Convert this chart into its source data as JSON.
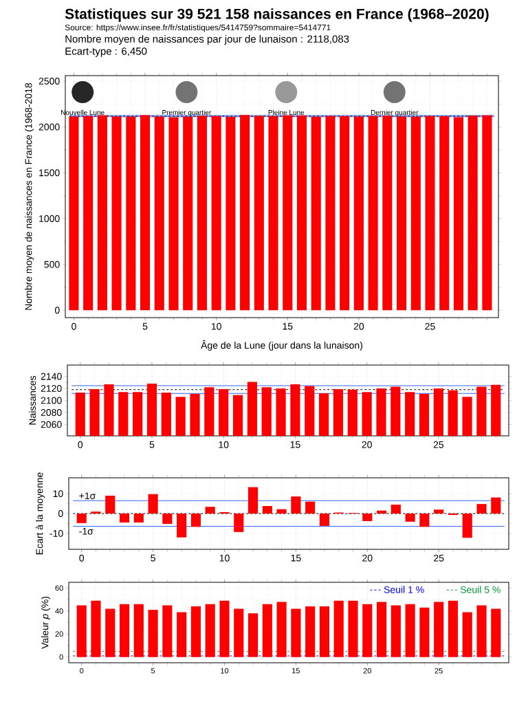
{
  "chart_data": [
    {
      "type": "bar",
      "title": "Statistiques sur 39 521 158 naissances en France (1968–2020)",
      "xlabel": "Âge de la Lune (jour dans la lunaison)",
      "ylabel": "Nombre moyen de naissances en France (1968-2018",
      "annotations": [
        "Source: https://www.insee.fr/fr/statistiques/5414759?sommaire=5414771",
        "Nombre moyen de naissances par jour de lunaison : 2118,083",
        "Ecart-type : 6,450",
        "Nouvelle Lune",
        "Premier quartier",
        "Pleine Lune",
        "Dernier quartier"
      ],
      "x": [
        0,
        1,
        2,
        3,
        4,
        5,
        6,
        7,
        8,
        9,
        10,
        11,
        12,
        13,
        14,
        15,
        16,
        17,
        18,
        19,
        20,
        21,
        22,
        23,
        24,
        25,
        26,
        27,
        28,
        29
      ],
      "values": [
        2113,
        2119,
        2127,
        2114,
        2114,
        2128,
        2113,
        2106,
        2111,
        2122,
        2119,
        2109,
        2131,
        2122,
        2120,
        2127,
        2124,
        2112,
        2119,
        2118,
        2114,
        2120,
        2123,
        2114,
        2111,
        2120,
        2117,
        2106,
        2123,
        2126
      ],
      "color": "#ff0000",
      "xlim": [
        -0.6,
        29.8
      ],
      "ylim": [
        -80,
        2560
      ],
      "xticks": [
        0,
        5,
        10,
        15,
        20,
        25
      ],
      "yticks": [
        0,
        500,
        1000,
        1500,
        2000,
        2500
      ],
      "grid": true,
      "ref_lines": [
        {
          "axis": "y",
          "value": 2111.6,
          "color": "#3366ff"
        },
        {
          "axis": "y",
          "value": 2124.5,
          "color": "#3366ff"
        },
        {
          "axis": "y",
          "value": 2118.1,
          "color": "#000000",
          "line_style": "dashed"
        }
      ]
    },
    {
      "type": "bar",
      "ylabel": "Naissances",
      "x": [
        0,
        1,
        2,
        3,
        4,
        5,
        6,
        7,
        8,
        9,
        10,
        11,
        12,
        13,
        14,
        15,
        16,
        17,
        18,
        19,
        20,
        21,
        22,
        23,
        24,
        25,
        26,
        27,
        28,
        29
      ],
      "values": [
        2113,
        2119,
        2127,
        2114,
        2114,
        2128,
        2113,
        2106,
        2111,
        2122,
        2119,
        2109,
        2131,
        2122,
        2120,
        2127,
        2124,
        2112,
        2119,
        2118,
        2114,
        2120,
        2123,
        2114,
        2111,
        2120,
        2117,
        2106,
        2123,
        2126
      ],
      "color": "#ff0000",
      "xlim": [
        -0.9,
        29.9
      ],
      "ylim": [
        2041,
        2159
      ],
      "xticks": [
        0,
        5,
        10,
        15,
        20,
        25
      ],
      "yticks": [
        2060,
        2080,
        2100,
        2120,
        2140
      ],
      "grid": true,
      "ref_lines": [
        {
          "axis": "y",
          "value": 2111.6,
          "color": "#3366ff"
        },
        {
          "axis": "y",
          "value": 2124.5,
          "color": "#3366ff"
        },
        {
          "axis": "y",
          "value": 2118.1,
          "color": "#000000",
          "line_style": "dashed"
        }
      ]
    },
    {
      "type": "bar",
      "ylabel": "Ecart à la moyenne",
      "x": [
        0,
        1,
        2,
        3,
        4,
        5,
        6,
        7,
        8,
        9,
        10,
        11,
        12,
        13,
        14,
        15,
        16,
        17,
        18,
        19,
        20,
        21,
        22,
        23,
        24,
        25,
        26,
        27,
        28,
        29
      ],
      "values": [
        -4.8,
        1,
        9,
        -4.5,
        -4.5,
        9.8,
        -5.2,
        -12,
        -6.7,
        3.4,
        0.7,
        -9.3,
        13.3,
        3.8,
        2.2,
        8.6,
        6,
        -6.2,
        0.5,
        0.3,
        -3.8,
        1.5,
        4.5,
        -4.1,
        -6.7,
        2,
        -0.7,
        -12.2,
        4.8,
        8.1
      ],
      "color": "#ff0000",
      "xlim": [
        -0.9,
        29.9
      ],
      "ylim": [
        -18,
        18
      ],
      "xticks": [
        0,
        5,
        10,
        15,
        20,
        25
      ],
      "yticks": [
        -10,
        0,
        10
      ],
      "grid": true,
      "ref_lines": [
        {
          "axis": "y",
          "value": 6.45,
          "label": "+1σ",
          "color": "#3366ff"
        },
        {
          "axis": "y",
          "value": -6.45,
          "label": "-1σ",
          "color": "#3366ff"
        },
        {
          "axis": "y",
          "value": 0,
          "color": "#000000",
          "line_style": "dashed"
        }
      ]
    },
    {
      "type": "bar",
      "ylabel": "Valeur *p* (%)",
      "x": [
        0,
        1,
        2,
        3,
        4,
        5,
        6,
        7,
        8,
        9,
        10,
        11,
        12,
        13,
        14,
        15,
        16,
        17,
        18,
        19,
        20,
        21,
        22,
        23,
        24,
        25,
        26,
        27,
        28,
        29
      ],
      "values": [
        45,
        49,
        42,
        46,
        46,
        41,
        45,
        39,
        44,
        46,
        49,
        42,
        38,
        46,
        48,
        42,
        44,
        44,
        49,
        49,
        46,
        48,
        45,
        46,
        43,
        48,
        49,
        39,
        45,
        42
      ],
      "color": "#ff0000",
      "xlim": [
        -0.9,
        29.9
      ],
      "ylim": [
        -5,
        65
      ],
      "xticks": [
        0,
        5,
        10,
        15,
        20,
        25
      ],
      "yticks": [
        0,
        20,
        40,
        60
      ],
      "grid": true,
      "legend": "top right",
      "ref_lines": [
        {
          "axis": "y",
          "value": 1,
          "label": "Seuil 1 %",
          "color": "#0000ff",
          "line_style": "dashed"
        },
        {
          "axis": "y",
          "value": 5,
          "label": "Seuil 5 %",
          "color": "#009933",
          "line_style": "dashed"
        }
      ]
    }
  ]
}
